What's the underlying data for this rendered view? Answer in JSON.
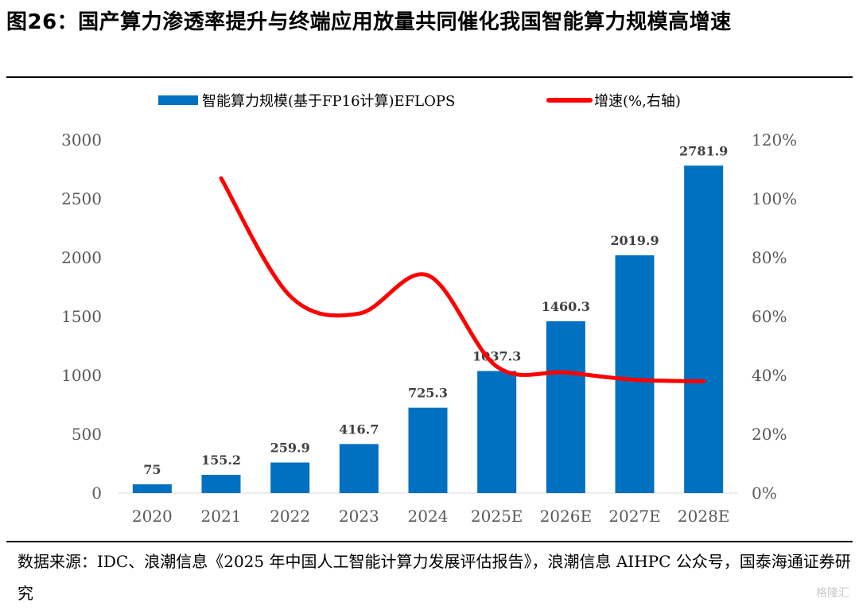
{
  "title": "图26：国产算力渗透率提升与终端应用放量共同催化我国智能算力规模高增速",
  "source": "数据来源：IDC、浪潮信息《2025 年中国人工智能计算力发展评估报告》，浪潮信息 AIHPC 公众号，国泰海通证券研究",
  "watermark": "格隆汇",
  "chart_data": {
    "type": "bar+line",
    "categories": [
      "2020",
      "2021",
      "2022",
      "2023",
      "2024",
      "2025E",
      "2026E",
      "2027E",
      "2028E"
    ],
    "series": [
      {
        "name": "智能算力规模(基于FP16计算)EFLOPS",
        "kind": "bar",
        "axis": "left",
        "color": "#0070C0",
        "values": [
          75,
          155.2,
          259.9,
          416.7,
          725.3,
          1037.3,
          1460.3,
          2019.9,
          2781.9
        ],
        "labels": [
          "75",
          "155.2",
          "259.9",
          "416.7",
          "725.3",
          "1037.3",
          "1460.3",
          "2019.9",
          "2781.9"
        ]
      },
      {
        "name": "增速(%,右轴)",
        "kind": "line",
        "axis": "right",
        "color": "#FF0000",
        "values": [
          null,
          107,
          67,
          61,
          74,
          43,
          41,
          38.5,
          38
        ]
      }
    ],
    "y_left": {
      "min": 0,
      "max": 3000,
      "step": 500,
      "ticks": [
        "0",
        "500",
        "1000",
        "1500",
        "2000",
        "2500",
        "3000"
      ]
    },
    "y_right": {
      "min": 0,
      "max": 120,
      "step": 20,
      "ticks": [
        "0%",
        "20%",
        "40%",
        "60%",
        "80%",
        "100%",
        "120%"
      ]
    },
    "grid": false,
    "legend_position": "top"
  }
}
